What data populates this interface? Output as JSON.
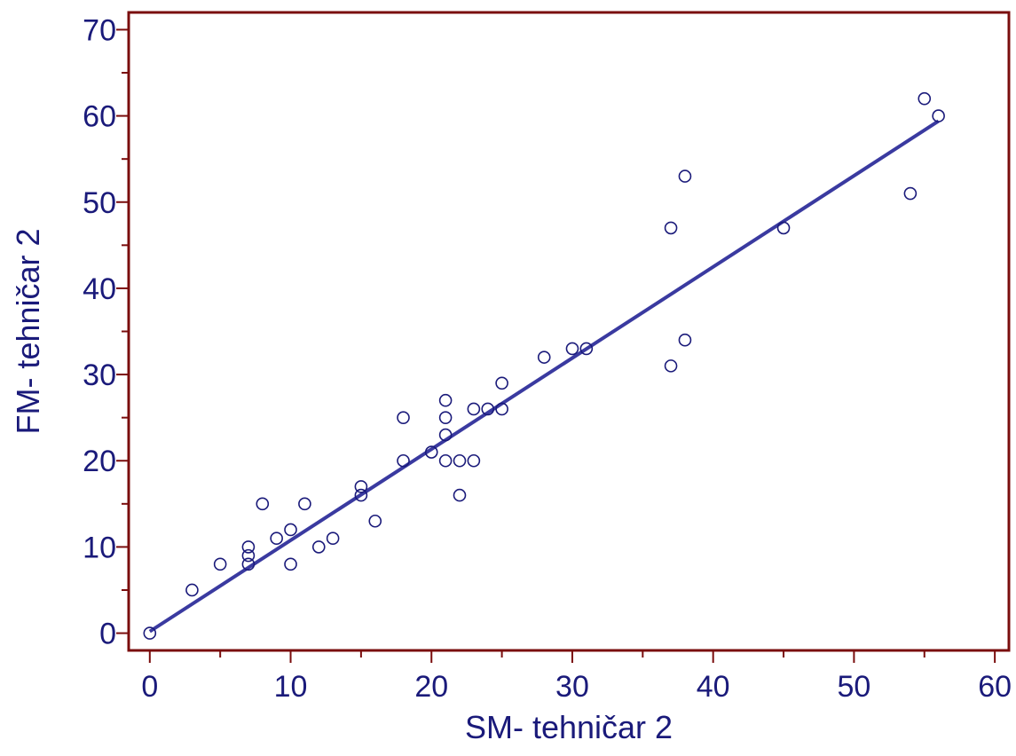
{
  "colors": {
    "frame": "#7a0d0d",
    "text": "#1a1a7a",
    "line": "#3a3aa0",
    "marker": "#1a1a7a",
    "background": "#ffffff"
  },
  "chart_data": {
    "type": "scatter",
    "xlabel": "SM- tehničar 2",
    "ylabel": "FM- tehničar 2",
    "xlim": [
      -1.5,
      61
    ],
    "ylim": [
      -2,
      72
    ],
    "x_ticks_major": [
      0,
      10,
      20,
      30,
      40,
      50,
      60
    ],
    "x_ticks_minor": [
      5,
      15,
      25,
      35,
      45,
      55
    ],
    "y_ticks_major": [
      0,
      10,
      20,
      30,
      40,
      50,
      60,
      70
    ],
    "y_ticks_minor": [
      5,
      15,
      25,
      35,
      45,
      55,
      65
    ],
    "grid": false,
    "points": [
      [
        0,
        0
      ],
      [
        3,
        5
      ],
      [
        5,
        8
      ],
      [
        7,
        8
      ],
      [
        7,
        9
      ],
      [
        7,
        10
      ],
      [
        8,
        15
      ],
      [
        9,
        11
      ],
      [
        10,
        8
      ],
      [
        10,
        12
      ],
      [
        11,
        15
      ],
      [
        12,
        10
      ],
      [
        13,
        11
      ],
      [
        15,
        16
      ],
      [
        15,
        17
      ],
      [
        16,
        13
      ],
      [
        18,
        20
      ],
      [
        18,
        25
      ],
      [
        20,
        21
      ],
      [
        21,
        20
      ],
      [
        21,
        23
      ],
      [
        21,
        25
      ],
      [
        21,
        27
      ],
      [
        22,
        16
      ],
      [
        22,
        20
      ],
      [
        23,
        20
      ],
      [
        23,
        26
      ],
      [
        24,
        26
      ],
      [
        25,
        26
      ],
      [
        25,
        29
      ],
      [
        28,
        32
      ],
      [
        30,
        33
      ],
      [
        31,
        33
      ],
      [
        37,
        31
      ],
      [
        37,
        47
      ],
      [
        38,
        34
      ],
      [
        38,
        53
      ],
      [
        45,
        47
      ],
      [
        54,
        51
      ],
      [
        55,
        62
      ],
      [
        56,
        60
      ]
    ],
    "fit_line": {
      "x": [
        0,
        56
      ],
      "y": [
        0.2,
        59.4
      ]
    }
  }
}
